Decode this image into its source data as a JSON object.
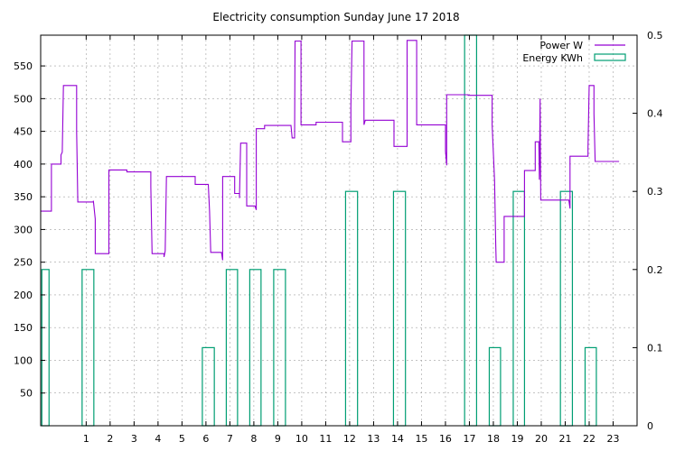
{
  "chart_data": {
    "title": "Electricity consumption Sunday June 17 2018",
    "type": "line",
    "x_range": [
      -0.9,
      24
    ],
    "x_ticks": [
      1,
      2,
      3,
      4,
      5,
      6,
      7,
      8,
      9,
      10,
      11,
      12,
      13,
      14,
      15,
      16,
      17,
      18,
      19,
      20,
      21,
      22,
      23
    ],
    "y_left": {
      "range": [
        0,
        597
      ],
      "ticks": [
        50,
        100,
        150,
        200,
        250,
        300,
        350,
        400,
        450,
        500,
        550
      ]
    },
    "y_right": {
      "range": [
        0,
        0.5
      ],
      "ticks": [
        0,
        0.1,
        0.2,
        0.3,
        0.4,
        0.5
      ]
    },
    "grid": true,
    "legend_position": "top-right",
    "series": [
      {
        "name": "Power W",
        "color": "#9400d3",
        "axis": "left",
        "style": "step-line",
        "points": [
          [
            -0.9,
            328
          ],
          [
            -0.45,
            328
          ],
          [
            -0.45,
            400
          ],
          [
            -0.05,
            400
          ],
          [
            -0.05,
            414
          ],
          [
            0.0,
            418
          ],
          [
            0.05,
            520
          ],
          [
            0.6,
            520
          ],
          [
            0.6,
            450
          ],
          [
            0.65,
            342
          ],
          [
            1.3,
            342
          ],
          [
            1.3,
            344
          ],
          [
            1.38,
            316
          ],
          [
            1.38,
            263
          ],
          [
            1.95,
            263
          ],
          [
            1.95,
            391
          ],
          [
            2.7,
            391
          ],
          [
            2.7,
            388
          ],
          [
            3.7,
            388
          ],
          [
            3.7,
            365
          ],
          [
            3.75,
            263
          ],
          [
            4.25,
            263
          ],
          [
            4.25,
            258
          ],
          [
            4.3,
            267
          ],
          [
            4.35,
            381
          ],
          [
            5.55,
            381
          ],
          [
            5.55,
            369
          ],
          [
            6.1,
            369
          ],
          [
            6.15,
            328
          ],
          [
            6.2,
            265
          ],
          [
            6.65,
            265
          ],
          [
            6.7,
            253
          ],
          [
            6.7,
            381
          ],
          [
            7.2,
            381
          ],
          [
            7.2,
            355
          ],
          [
            7.4,
            355
          ],
          [
            7.4,
            348
          ],
          [
            7.45,
            432
          ],
          [
            7.7,
            432
          ],
          [
            7.7,
            336
          ],
          [
            8.05,
            336
          ],
          [
            8.1,
            330
          ],
          [
            8.1,
            454
          ],
          [
            8.45,
            454
          ],
          [
            8.45,
            459
          ],
          [
            9.55,
            459
          ],
          [
            9.6,
            440
          ],
          [
            9.7,
            440
          ],
          [
            9.72,
            588
          ],
          [
            9.97,
            588
          ],
          [
            9.97,
            460
          ],
          [
            10.6,
            460
          ],
          [
            10.6,
            464
          ],
          [
            11.7,
            464
          ],
          [
            11.7,
            434
          ],
          [
            12.05,
            434
          ],
          [
            12.05,
            488
          ],
          [
            12.1,
            588
          ],
          [
            12.6,
            588
          ],
          [
            12.6,
            460
          ],
          [
            12.65,
            467
          ],
          [
            13.85,
            467
          ],
          [
            13.85,
            427
          ],
          [
            14.4,
            427
          ],
          [
            14.4,
            589
          ],
          [
            14.8,
            589
          ],
          [
            14.8,
            460
          ],
          [
            16.0,
            460
          ],
          [
            16.0,
            420
          ],
          [
            16.05,
            398
          ],
          [
            16.05,
            506
          ],
          [
            16.95,
            506
          ],
          [
            16.95,
            505
          ],
          [
            17.95,
            505
          ],
          [
            17.95,
            460
          ],
          [
            18.05,
            375
          ],
          [
            18.1,
            277
          ],
          [
            18.12,
            250
          ],
          [
            18.45,
            250
          ],
          [
            18.45,
            320
          ],
          [
            19.3,
            320
          ],
          [
            19.3,
            390
          ],
          [
            19.75,
            390
          ],
          [
            19.75,
            434
          ],
          [
            19.9,
            434
          ],
          [
            19.92,
            376
          ],
          [
            19.95,
            500
          ],
          [
            19.98,
            345
          ],
          [
            21.15,
            345
          ],
          [
            21.2,
            332
          ],
          [
            21.2,
            412
          ],
          [
            21.95,
            412
          ],
          [
            21.95,
            425
          ],
          [
            22.0,
            520
          ],
          [
            22.2,
            520
          ],
          [
            22.2,
            477
          ],
          [
            22.25,
            404
          ],
          [
            23.25,
            404
          ]
        ]
      },
      {
        "name": "Energy KWh",
        "color": "#009e73",
        "axis": "right",
        "style": "boxes",
        "bars": [
          {
            "x0": -0.85,
            "x1": -0.55,
            "value": 0.2
          },
          {
            "x0": 0.83,
            "x1": 1.32,
            "value": 0.2
          },
          {
            "x0": 5.85,
            "x1": 6.35,
            "value": 0.1
          },
          {
            "x0": 6.85,
            "x1": 7.32,
            "value": 0.2
          },
          {
            "x0": 7.83,
            "x1": 8.3,
            "value": 0.2
          },
          {
            "x0": 8.83,
            "x1": 9.32,
            "value": 0.2
          },
          {
            "x0": 11.83,
            "x1": 12.33,
            "value": 0.3
          },
          {
            "x0": 13.83,
            "x1": 14.33,
            "value": 0.3
          },
          {
            "x0": 16.8,
            "x1": 17.3,
            "value": 0.5
          },
          {
            "x0": 17.83,
            "x1": 18.3,
            "value": 0.1
          },
          {
            "x0": 18.83,
            "x1": 19.3,
            "value": 0.3
          },
          {
            "x0": 20.8,
            "x1": 21.3,
            "value": 0.3
          },
          {
            "x0": 21.83,
            "x1": 22.3,
            "value": 0.1
          }
        ]
      }
    ]
  }
}
